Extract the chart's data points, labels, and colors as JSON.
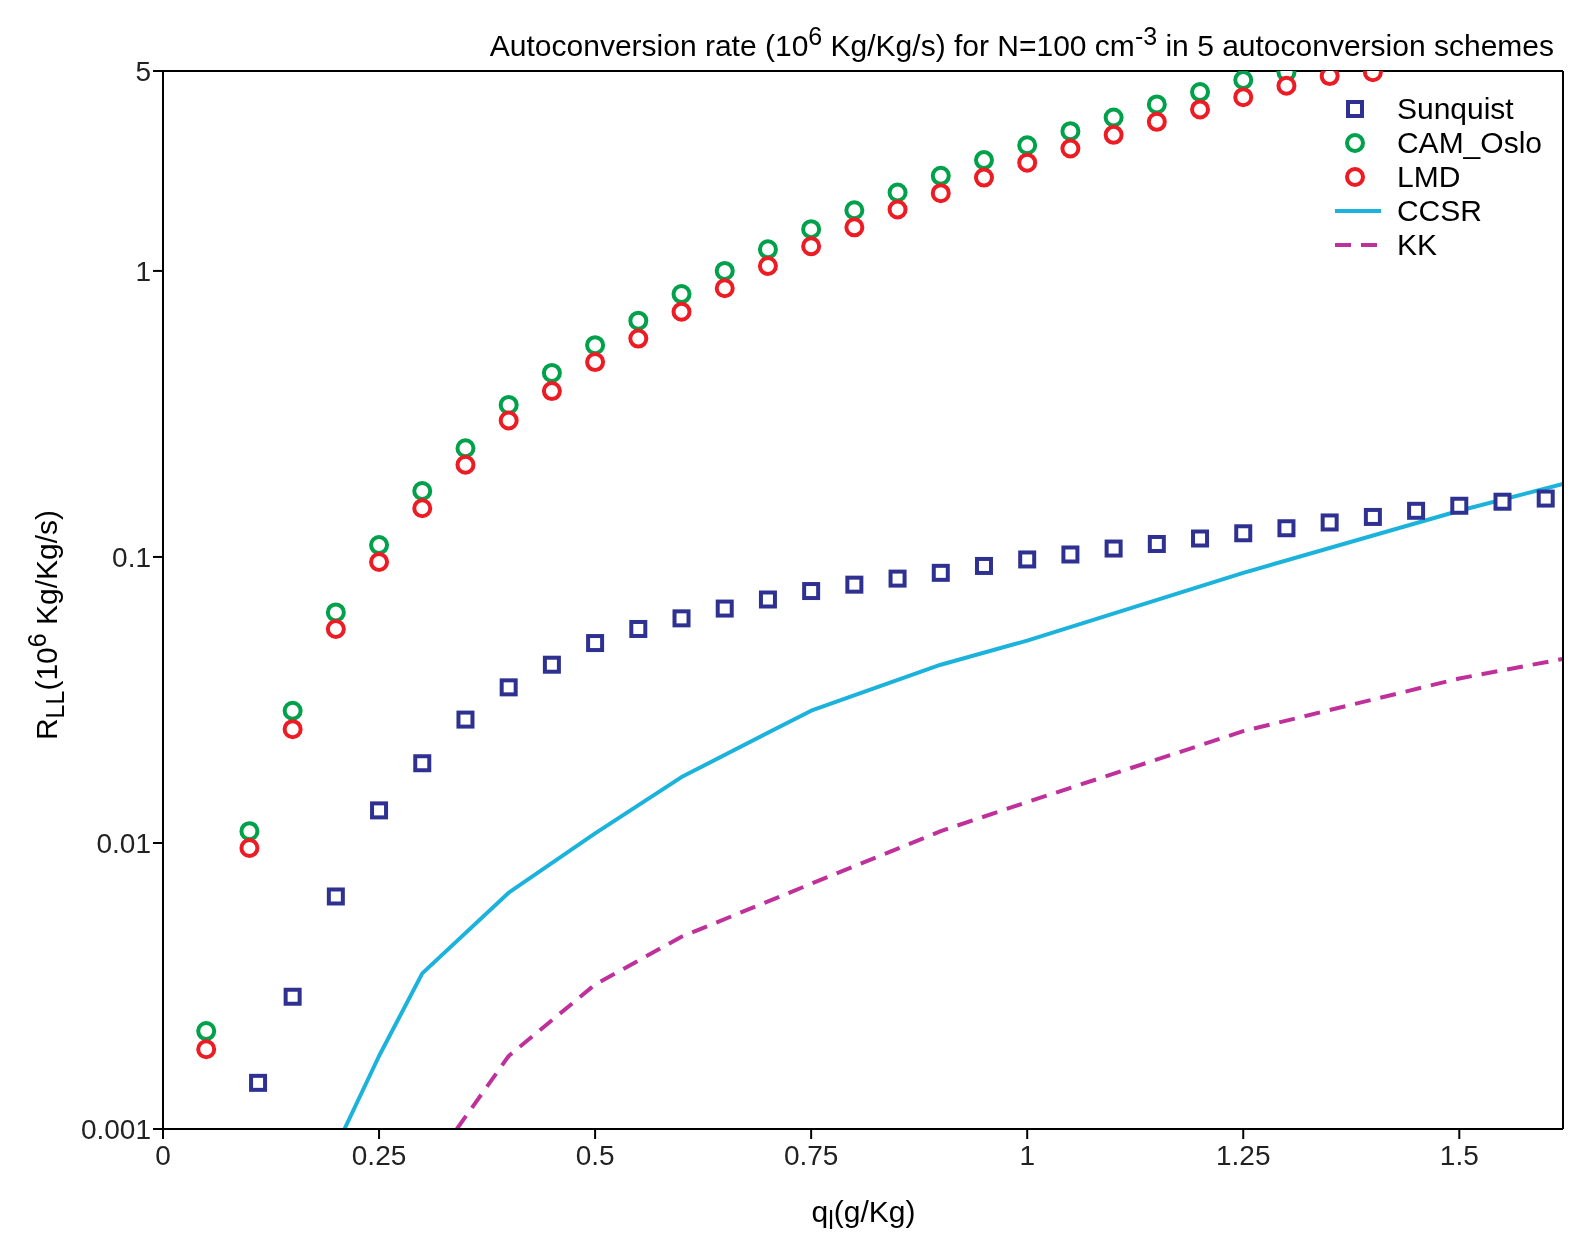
{
  "chart_data": {
    "type": "scatter",
    "title": "Autoconversion rate (10$^{6}$ Kg/Kg/s) for N=100 cm$^{-3}$ in 5 autoconversion schemes",
    "xlabel": "q$_{l}$(g/Kg)",
    "ylabel": "R$_{LL}$(10$^{6}$ Kg/Kg/s)",
    "log": "y",
    "grid": false,
    "legend": "top right",
    "xlim": [
      0,
      1.62
    ],
    "xticks": [
      0,
      0.25,
      0.5,
      0.75,
      1,
      1.25,
      1.5
    ],
    "ylim": [
      0.001,
      5
    ],
    "yticks": [
      0.001,
      0.01,
      0.1,
      1,
      5
    ],
    "series": [
      {
        "name": "Sunquist",
        "marker": "square",
        "color": "#2e3192",
        "x": [
          0.11,
          0.15,
          0.2,
          0.25,
          0.3,
          0.35,
          0.4,
          0.45,
          0.5,
          0.55,
          0.6,
          0.65,
          0.7,
          0.75,
          0.8,
          0.85,
          0.9,
          0.95,
          1.0,
          1.05,
          1.1,
          1.15,
          1.2,
          1.25,
          1.3,
          1.35,
          1.4,
          1.45,
          1.5,
          1.55,
          1.6
        ],
        "values": [
          0.00145,
          0.0029,
          0.0065,
          0.013,
          0.019,
          0.027,
          0.035,
          0.042,
          0.05,
          0.056,
          0.061,
          0.066,
          0.071,
          0.076,
          0.08,
          0.084,
          0.088,
          0.093,
          0.098,
          0.102,
          0.107,
          0.111,
          0.116,
          0.121,
          0.126,
          0.132,
          0.138,
          0.145,
          0.151,
          0.156,
          0.16
        ]
      },
      {
        "name": "CAM_Oslo",
        "marker": "circle",
        "color": "#00a14b",
        "x": [
          0.05,
          0.1,
          0.15,
          0.2,
          0.25,
          0.3,
          0.35,
          0.4,
          0.45,
          0.5,
          0.55,
          0.6,
          0.65,
          0.7,
          0.75,
          0.8,
          0.85,
          0.9,
          0.95,
          1.0,
          1.05,
          1.1,
          1.15,
          1.2,
          1.25,
          1.3
        ],
        "values": [
          0.0022,
          0.011,
          0.029,
          0.064,
          0.11,
          0.17,
          0.24,
          0.34,
          0.44,
          0.55,
          0.67,
          0.83,
          1.0,
          1.19,
          1.4,
          1.63,
          1.88,
          2.15,
          2.44,
          2.75,
          3.08,
          3.44,
          3.82,
          4.22,
          4.65,
          4.95
        ]
      },
      {
        "name": "LMD",
        "marker": "circle",
        "color": "#ed1c24",
        "x": [
          0.05,
          0.1,
          0.15,
          0.2,
          0.25,
          0.3,
          0.35,
          0.4,
          0.45,
          0.5,
          0.55,
          0.6,
          0.65,
          0.7,
          0.75,
          0.8,
          0.85,
          0.9,
          0.95,
          1.0,
          1.05,
          1.1,
          1.15,
          1.2,
          1.25,
          1.3,
          1.35,
          1.4
        ],
        "values": [
          0.0019,
          0.0096,
          0.025,
          0.056,
          0.096,
          0.148,
          0.21,
          0.3,
          0.38,
          0.48,
          0.58,
          0.72,
          0.87,
          1.04,
          1.22,
          1.42,
          1.64,
          1.87,
          2.12,
          2.39,
          2.68,
          2.99,
          3.32,
          3.67,
          4.05,
          4.44,
          4.8,
          4.95
        ]
      },
      {
        "name": "CCSR",
        "type": "line",
        "marker": "none",
        "line_style": "solid",
        "color": "#1bb3dc",
        "x": [
          0.21,
          0.25,
          0.3,
          0.4,
          0.5,
          0.6,
          0.75,
          0.9,
          1.0,
          1.25,
          1.5,
          1.62
        ],
        "values": [
          0.001,
          0.0018,
          0.0035,
          0.0067,
          0.0108,
          0.017,
          0.029,
          0.042,
          0.051,
          0.088,
          0.145,
          0.18
        ]
      },
      {
        "name": "KK",
        "type": "line",
        "marker": "none",
        "line_style": "dashed",
        "color": "#c0309b",
        "x": [
          0.34,
          0.4,
          0.5,
          0.6,
          0.75,
          0.9,
          1.0,
          1.25,
          1.5,
          1.62
        ],
        "values": [
          0.001,
          0.0018,
          0.0032,
          0.0047,
          0.0072,
          0.011,
          0.0139,
          0.0246,
          0.0376,
          0.044
        ]
      }
    ]
  }
}
